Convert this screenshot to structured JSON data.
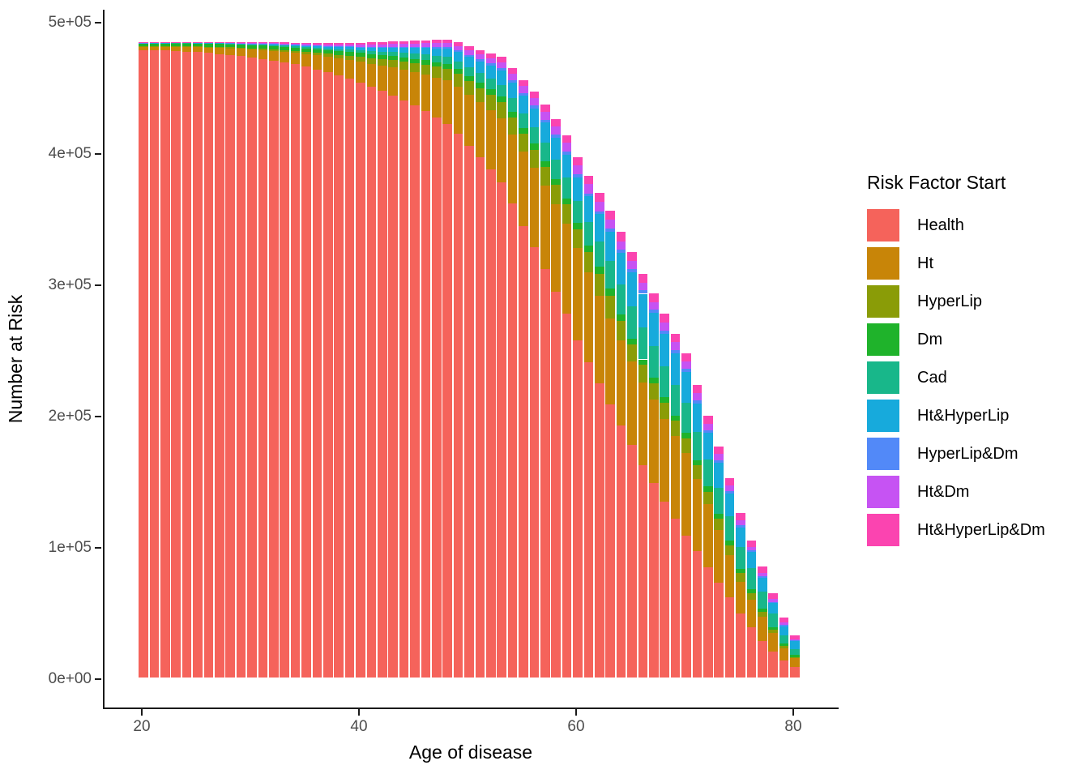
{
  "chart_data": {
    "type": "bar",
    "stacked": true,
    "title": "",
    "xlabel": "Age of disease",
    "ylabel": "Number at Risk",
    "legend_title": "Risk Factor Start",
    "legend_position": "right",
    "grid": false,
    "background": "#ffffff",
    "axis_color": "#1a1a1a",
    "tick_text_color": "#4d4d4d",
    "ylim": [
      0,
      500000
    ],
    "x_ticks": [
      {
        "label": "20",
        "value": 20
      },
      {
        "label": "40",
        "value": 40
      },
      {
        "label": "60",
        "value": 60
      },
      {
        "label": "80",
        "value": 80
      }
    ],
    "y_ticks": [
      {
        "label": "0e+00",
        "value": 0
      },
      {
        "label": "1e+05",
        "value": 100000
      },
      {
        "label": "2e+05",
        "value": 200000
      },
      {
        "label": "3e+05",
        "value": 300000
      },
      {
        "label": "4e+05",
        "value": 400000
      },
      {
        "label": "5e+05",
        "value": 500000
      }
    ],
    "ages": [
      20,
      21,
      22,
      23,
      24,
      25,
      26,
      27,
      28,
      29,
      30,
      31,
      32,
      33,
      34,
      35,
      36,
      37,
      38,
      39,
      40,
      41,
      42,
      43,
      44,
      45,
      46,
      47,
      48,
      49,
      50,
      51,
      52,
      53,
      54,
      55,
      56,
      57,
      58,
      59,
      60,
      61,
      62,
      63,
      64,
      65,
      66,
      67,
      68,
      69,
      70,
      71,
      72,
      73,
      74,
      75,
      76,
      77,
      78,
      79,
      80
    ],
    "series": [
      {
        "name": "Health",
        "color": "#F5635B",
        "values": [
          478000,
          477800,
          477500,
          477200,
          476800,
          476300,
          475700,
          475000,
          474200,
          473300,
          472300,
          471200,
          470000,
          468600,
          467000,
          465200,
          463200,
          461000,
          458600,
          456000,
          453200,
          450200,
          447000,
          443500,
          439700,
          435600,
          431200,
          426500,
          421500,
          414000,
          405000,
          396000,
          387000,
          377000,
          361000,
          344000,
          328000,
          311000,
          294000,
          277000,
          257000,
          240000,
          224000,
          208000,
          192000,
          177000,
          162000,
          148000,
          134000,
          121000,
          108000,
          96000,
          84000,
          72000,
          61000,
          49000,
          38000,
          28000,
          20000,
          13000,
          8000
        ]
      },
      {
        "name": "Ht",
        "color": "#C88508",
        "values": [
          2500,
          2700,
          2900,
          3200,
          3500,
          3800,
          4200,
          4600,
          5000,
          5500,
          6000,
          6600,
          7200,
          7900,
          8700,
          9600,
          10600,
          11700,
          12900,
          14300,
          15800,
          17400,
          19200,
          21100,
          23200,
          25500,
          28000,
          30500,
          33200,
          36000,
          38900,
          42000,
          45200,
          48700,
          52500,
          56500,
          60000,
          63500,
          66500,
          68800,
          70000,
          68500,
          67000,
          65400,
          64500,
          63500,
          63000,
          63500,
          63000,
          62800,
          62900,
          55000,
          48000,
          40500,
          32000,
          24000,
          21000,
          18000,
          14000,
          9000,
          6800
        ]
      },
      {
        "name": "HyperLip",
        "color": "#8A9C07",
        "values": [
          300,
          350,
          400,
          450,
          500,
          600,
          650,
          700,
          800,
          900,
          1000,
          1150,
          1300,
          1450,
          1600,
          1800,
          2100,
          2400,
          2800,
          3300,
          3800,
          4300,
          4900,
          5500,
          6100,
          6800,
          7500,
          8200,
          8900,
          9600,
          10300,
          11000,
          11700,
          12400,
          13100,
          13700,
          14100,
          14400,
          14600,
          14700,
          14600,
          15500,
          16400,
          17300,
          15300,
          13400,
          13000,
          12600,
          12200,
          11800,
          11400,
          10500,
          9600,
          8700,
          7800,
          6700,
          5500,
          4000,
          2500,
          2000,
          700
        ]
      },
      {
        "name": "Dm",
        "color": "#1FB32B",
        "values": [
          2200,
          2200,
          2200,
          2250,
          2250,
          2300,
          2300,
          2350,
          2400,
          2400,
          2500,
          2500,
          2550,
          2600,
          2600,
          2700,
          2700,
          2750,
          2800,
          2850,
          2900,
          3000,
          3100,
          3200,
          3250,
          3350,
          3450,
          3550,
          3650,
          3750,
          3900,
          4000,
          4100,
          4200,
          4300,
          4400,
          4450,
          4500,
          4500,
          4550,
          4550,
          4900,
          5300,
          5700,
          5000,
          4300,
          4300,
          4200,
          4200,
          4100,
          4000,
          3900,
          3800,
          3700,
          3600,
          3300,
          3000,
          2200,
          2000,
          2000,
          1500
        ]
      },
      {
        "name": "Cad",
        "color": "#18B78A",
        "values": [
          200,
          200,
          250,
          250,
          300,
          300,
          350,
          400,
          450,
          450,
          500,
          600,
          700,
          800,
          900,
          1000,
          1200,
          1400,
          1600,
          1800,
          2000,
          2300,
          2600,
          3000,
          3400,
          3800,
          4300,
          4800,
          5400,
          6000,
          6700,
          7500,
          8300,
          9200,
          10200,
          11300,
          12500,
          13800,
          15000,
          16000,
          17000,
          18300,
          19600,
          21000,
          22800,
          24700,
          24500,
          24200,
          23800,
          23300,
          22800,
          21500,
          20500,
          19500,
          18500,
          16500,
          16000,
          13000,
          10000,
          6000,
          4700
        ]
      },
      {
        "name": "Ht&HyperLip",
        "color": "#17AADC",
        "values": [
          100,
          120,
          150,
          180,
          200,
          250,
          300,
          320,
          350,
          400,
          400,
          500,
          600,
          700,
          800,
          1000,
          1200,
          1400,
          1600,
          1900,
          2200,
          2600,
          3000,
          3400,
          3800,
          4300,
          4900,
          5500,
          6200,
          7000,
          7800,
          8700,
          9700,
          10800,
          12000,
          13300,
          14400,
          15600,
          16500,
          17300,
          18000,
          19300,
          20600,
          22000,
          23800,
          25700,
          25500,
          25200,
          24800,
          24200,
          23500,
          22000,
          20500,
          19000,
          17000,
          14500,
          12000,
          10500,
          8000,
          7000,
          6000
        ]
      },
      {
        "name": "HyperLip&Dm",
        "color": "#5289F8",
        "values": [
          50,
          50,
          60,
          70,
          80,
          100,
          120,
          130,
          150,
          170,
          200,
          220,
          250,
          270,
          300,
          350,
          400,
          450,
          500,
          550,
          600,
          700,
          750,
          850,
          900,
          1000,
          1100,
          1200,
          1300,
          1400,
          1500,
          1600,
          1700,
          1800,
          1900,
          2000,
          2100,
          2150,
          2200,
          2200,
          2200,
          2250,
          2300,
          2300,
          2400,
          2500,
          2500,
          2500,
          2400,
          2400,
          2300,
          2200,
          2100,
          2000,
          1900,
          1800,
          1500,
          1300,
          1100,
          900,
          500
        ]
      },
      {
        "name": "Ht&Dm",
        "color": "#C653F3",
        "values": [
          50,
          70,
          100,
          120,
          150,
          200,
          250,
          300,
          350,
          400,
          450,
          500,
          600,
          700,
          800,
          900,
          1000,
          1100,
          1250,
          1400,
          1500,
          1700,
          1800,
          2000,
          2200,
          2400,
          2600,
          2800,
          3000,
          3300,
          3600,
          3900,
          4200,
          4600,
          5000,
          5400,
          5800,
          6200,
          6500,
          6800,
          7000,
          7100,
          7200,
          7200,
          6600,
          6000,
          6000,
          5900,
          5800,
          5700,
          5600,
          5300,
          5000,
          4700,
          4400,
          4000,
          2500,
          2600,
          2000,
          2000,
          1000
        ]
      },
      {
        "name": "Ht&HyperLip&Dm",
        "color": "#FB44B0",
        "values": [
          100,
          150,
          200,
          250,
          300,
          350,
          400,
          450,
          450,
          500,
          500,
          600,
          700,
          800,
          900,
          1000,
          1100,
          1200,
          1300,
          1400,
          1500,
          1600,
          1700,
          1900,
          2000,
          2200,
          2300,
          2500,
          2700,
          2900,
          3100,
          3400,
          3700,
          4000,
          4300,
          4600,
          4900,
          5200,
          5500,
          5800,
          6000,
          6300,
          6600,
          6800,
          6900,
          7000,
          6900,
          6800,
          6700,
          6600,
          6500,
          6300,
          6100,
          5900,
          5700,
          5500,
          5000,
          5000,
          4500,
          4000,
          3000
        ]
      }
    ]
  }
}
